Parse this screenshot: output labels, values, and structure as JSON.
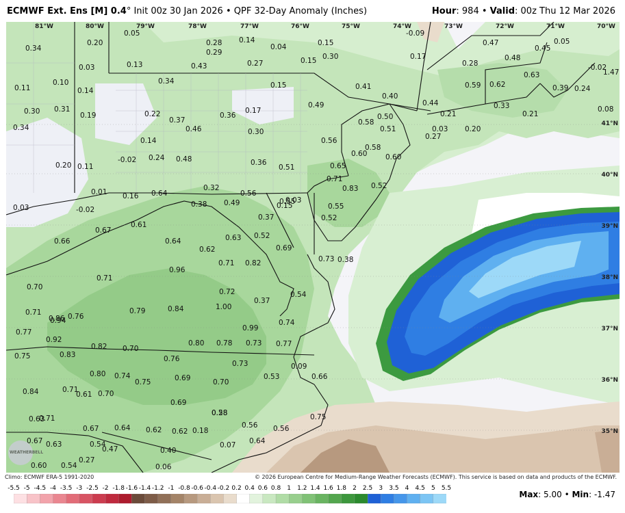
{
  "header": {
    "product": "ECMWF Ext. Ens [M] 0.4",
    "degree": "°",
    "init": "Init 00z 30 Jan 2026",
    "separator": "•",
    "field": "QPF 32-Day Anomaly (Inches)",
    "hour_label": "Hour",
    "hour_value": ": 984",
    "valid_label": "Valid",
    "valid_value": ": 00z Thu 12 Mar 2026"
  },
  "longitude_ticks": [
    "81°W",
    "80°W",
    "79°W",
    "78°W",
    "77°W",
    "76°W",
    "75°W",
    "74°W",
    "73°W",
    "72°W",
    "71°W",
    "70°W"
  ],
  "latitude_ticks": [
    "41°N",
    "40°N",
    "39°N",
    "38°N",
    "37°N",
    "36°N",
    "35°N"
  ],
  "footer": {
    "climo": "Climo: ECMWF ERA-5 1991-2020",
    "copyright": "© 2026 European Centre for Medium-Range Weather Forecasts (ECMWF). This service is based on data and products of the ECMWF."
  },
  "watermark": "WEATHERBELL",
  "legend": {
    "labels": [
      "-5.5",
      "-5",
      "-4.5",
      "-4",
      "-3.5",
      "-3",
      "-2.5",
      "-2",
      "-1.8",
      "-1.6",
      "-1.4",
      "-1.2",
      "-1",
      "-0.8",
      "-0.6",
      "-0.4",
      "-0.2",
      "0.2",
      "0.4",
      "0.6",
      "0.8",
      "1",
      "1.2",
      "1.4",
      "1.6",
      "1.8",
      "2",
      "2.5",
      "3",
      "3.5",
      "4",
      "4.5",
      "5",
      "5.5"
    ],
    "colors": [
      "#fde0e3",
      "#f8c3c8",
      "#f2a3ab",
      "#ea8690",
      "#e26c78",
      "#d85463",
      "#cc3c4f",
      "#bf2a3e",
      "#ad1c2e",
      "#6b4b3a",
      "#7e5c48",
      "#917058",
      "#a48468",
      "#b7997f",
      "#c9ae96",
      "#dac5af",
      "#e9dccc",
      "#ffffff",
      "#e2f3dd",
      "#c9e8c1",
      "#b0dca6",
      "#98cf8d",
      "#80c276",
      "#69b461",
      "#53a64e",
      "#3d973d",
      "#2b8a2e",
      "#1f61d6",
      "#2f7ee3",
      "#4596ea",
      "#5fb0f0",
      "#7cc5f4",
      "#9dd9f8"
    ]
  },
  "stats": {
    "max_label": "Max",
    "max_value": ": 5.00",
    "sep": "•",
    "min_label": "Min",
    "min_value": ": -1.47"
  },
  "anomaly_values": [
    {
      "v": "0.34"
    },
    {
      "v": "0.20"
    },
    {
      "v": "0.05"
    },
    {
      "v": "0.28"
    },
    {
      "v": "0.14"
    },
    {
      "v": "0.04"
    },
    {
      "v": "0.15"
    },
    {
      "v": "-0.09"
    },
    {
      "v": "0.47"
    },
    {
      "v": "0.45"
    },
    {
      "v": "0.05"
    },
    {
      "v": "0.29"
    },
    {
      "v": "0.30"
    },
    {
      "v": "0.17"
    },
    {
      "v": "0.48"
    },
    {
      "v": "0.03"
    },
    {
      "v": "0.13"
    },
    {
      "v": "0.43"
    },
    {
      "v": "0.27"
    },
    {
      "v": "0.15"
    },
    {
      "v": "0.28"
    },
    {
      "v": "-0.02"
    },
    {
      "v": "1.47"
    },
    {
      "v": "0.11"
    },
    {
      "v": "0.10"
    },
    {
      "v": "0.14"
    },
    {
      "v": "0.34"
    },
    {
      "v": "0.15"
    },
    {
      "v": "0.41"
    },
    {
      "v": "0.40"
    },
    {
      "v": "0.59"
    },
    {
      "v": "0.62"
    },
    {
      "v": "0.63"
    },
    {
      "v": "0.39"
    },
    {
      "v": "0.24"
    },
    {
      "v": "0.30"
    },
    {
      "v": "0.31"
    },
    {
      "v": "0.19"
    },
    {
      "v": "0.22"
    },
    {
      "v": "0.37"
    },
    {
      "v": "0.36"
    },
    {
      "v": "0.17"
    },
    {
      "v": "0.49"
    },
    {
      "v": "0.50"
    },
    {
      "v": "0.44"
    },
    {
      "v": "0.21"
    },
    {
      "v": "0.33"
    },
    {
      "v": "0.21"
    },
    {
      "v": "0.08"
    },
    {
      "v": "0.34"
    },
    {
      "v": "0.46"
    },
    {
      "v": "0.30"
    },
    {
      "v": "0.58"
    },
    {
      "v": "0.51"
    },
    {
      "v": "0.20"
    },
    {
      "v": "0.03"
    },
    {
      "v": "0.14"
    },
    {
      "v": "0.56"
    },
    {
      "v": "0.27"
    },
    {
      "v": "0.20"
    },
    {
      "v": "0.11"
    },
    {
      "v": "-0.02"
    },
    {
      "v": "0.24"
    },
    {
      "v": "0.48"
    },
    {
      "v": "0.36"
    },
    {
      "v": "0.51"
    },
    {
      "v": "0.58"
    },
    {
      "v": "0.60"
    },
    {
      "v": "0.60"
    },
    {
      "v": "0.65"
    },
    {
      "v": "0.71"
    },
    {
      "v": "0.83"
    },
    {
      "v": "0.52"
    },
    {
      "v": "0.01"
    },
    {
      "v": "0.16"
    },
    {
      "v": "0.64"
    },
    {
      "v": "0.32"
    },
    {
      "v": "0.56"
    },
    {
      "v": "0.03"
    },
    {
      "v": "-0.02"
    },
    {
      "v": "0.38"
    },
    {
      "v": "0.49"
    },
    {
      "v": "0.55"
    },
    {
      "v": "0.55"
    },
    {
      "v": "0.37"
    },
    {
      "v": "0.52"
    },
    {
      "v": "0.15"
    },
    {
      "v": "0.67"
    },
    {
      "v": "0.61"
    },
    {
      "v": "0.52"
    },
    {
      "v": "0.03"
    },
    {
      "v": "0.66"
    },
    {
      "v": "0.64"
    },
    {
      "v": "0.63"
    },
    {
      "v": "0.62"
    },
    {
      "v": "0.69"
    },
    {
      "v": "0.71"
    },
    {
      "v": "0.82"
    },
    {
      "v": "0.73"
    },
    {
      "v": "0.38"
    },
    {
      "v": "0.70"
    },
    {
      "v": "0.96"
    },
    {
      "v": "0.71"
    },
    {
      "v": "0.79"
    },
    {
      "v": "0.72"
    },
    {
      "v": "0.37"
    },
    {
      "v": "0.54"
    },
    {
      "v": "0.71"
    },
    {
      "v": "0.86"
    },
    {
      "v": "0.84"
    },
    {
      "v": "1.00"
    },
    {
      "v": "0.94"
    },
    {
      "v": "0.76"
    },
    {
      "v": "0.74"
    },
    {
      "v": "0.77"
    },
    {
      "v": "0.99"
    },
    {
      "v": "0.92"
    },
    {
      "v": "0.80"
    },
    {
      "v": "0.78"
    },
    {
      "v": "0.73"
    },
    {
      "v": "0.77"
    },
    {
      "v": "0.82"
    },
    {
      "v": "0.70"
    },
    {
      "v": "0.75"
    },
    {
      "v": "0.83"
    },
    {
      "v": "0.76"
    },
    {
      "v": "0.73"
    },
    {
      "v": "0.80"
    },
    {
      "v": "0.74"
    },
    {
      "v": "0.75"
    },
    {
      "v": "0.69"
    },
    {
      "v": "0.70"
    },
    {
      "v": "0.53"
    },
    {
      "v": "0.09"
    },
    {
      "v": "0.66"
    },
    {
      "v": "0.71"
    },
    {
      "v": "0.61"
    },
    {
      "v": "0.84"
    },
    {
      "v": "0.70"
    },
    {
      "v": "0.69"
    },
    {
      "v": "0.58"
    },
    {
      "v": "0.63"
    },
    {
      "v": "0.71"
    },
    {
      "v": "0.56"
    },
    {
      "v": "0.28"
    },
    {
      "v": "0.75"
    },
    {
      "v": "0.67"
    },
    {
      "v": "0.64"
    },
    {
      "v": "0.62"
    },
    {
      "v": "0.62"
    },
    {
      "v": "0.18"
    },
    {
      "v": "0.56"
    },
    {
      "v": "0.67"
    },
    {
      "v": "0.63"
    },
    {
      "v": "0.54"
    },
    {
      "v": "0.47"
    },
    {
      "v": "0.40"
    },
    {
      "v": "0.07"
    },
    {
      "v": "0.64"
    },
    {
      "v": "0.60"
    },
    {
      "v": "0.54"
    },
    {
      "v": "0.27"
    },
    {
      "v": "0.06"
    }
  ]
}
